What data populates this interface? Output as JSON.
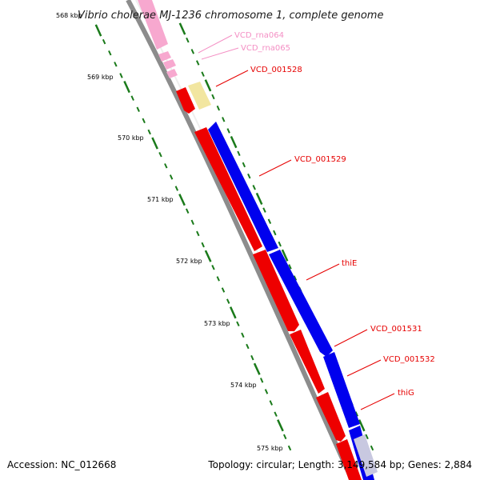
{
  "title": "Vibrio cholerae MJ-1236 chromosome 1, complete genome",
  "accession_label": "Accession:",
  "accession": "NC_012668",
  "topology_text": "Topology: circular; Length: 3,149,584 bp; Genes: 2,884",
  "ticks": [
    "568 kbp",
    "569 kbp",
    "570 kbp",
    "571 kbp",
    "572 kbp",
    "573 kbp",
    "574 kbp",
    "575 kbp"
  ],
  "genes": [
    {
      "name": "VCD_rna064",
      "color": "#f48fc4"
    },
    {
      "name": "VCD_rna065",
      "color": "#f48fc4"
    },
    {
      "name": "VCD_001528",
      "color": "#e60000"
    },
    {
      "name": "VCD_001529",
      "color": "#e60000"
    },
    {
      "name": "thiE",
      "color": "#e60000"
    },
    {
      "name": "VCD_001531",
      "color": "#e60000"
    },
    {
      "name": "VCD_001532",
      "color": "#e60000"
    },
    {
      "name": "thiG",
      "color": "#e60000"
    }
  ],
  "colors": {
    "backbone": "#8c8c8c",
    "forward_cds": "#ee0000",
    "reverse_cds": "#0000ee",
    "rna": "#f7a8cf",
    "misc_feature": "#f2e6a0",
    "tick": "#1a7a1a"
  }
}
